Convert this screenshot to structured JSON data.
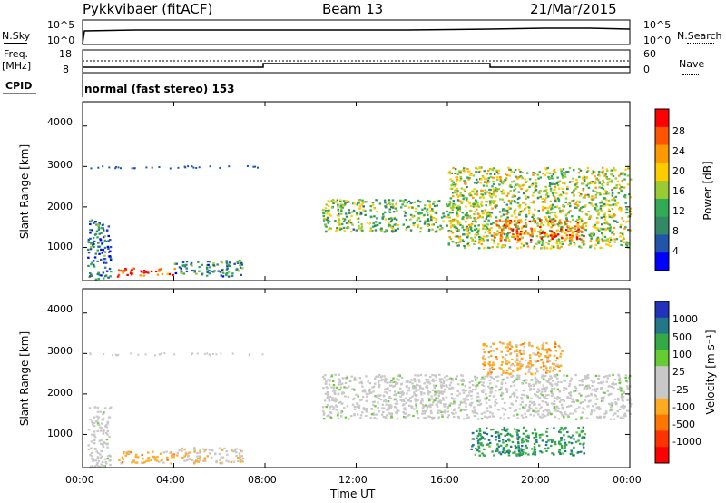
{
  "header": {
    "station": "Pykkvibaer (fitACF)",
    "beam": "Beam 13",
    "date": "21/Mar/2015"
  },
  "noise_panel": {
    "left_label": "N.Sky",
    "right_label": "N.Search",
    "left_ticks": [
      "10^5",
      "10^0"
    ],
    "right_ticks": [
      "10^5",
      "10^0"
    ]
  },
  "freq_panel": {
    "left_label_1": "Freq.",
    "left_label_2": "[MHz]",
    "right_label": "Nave",
    "left_ticks": [
      "18",
      "8"
    ],
    "right_ticks": [
      "60",
      "0"
    ]
  },
  "cpid": {
    "label": "CPID",
    "value": "normal (fast stereo) 153"
  },
  "power_colorbar": {
    "label": "Power [dB]",
    "ticks": [
      "28",
      "24",
      "20",
      "16",
      "12",
      "8",
      "4"
    ],
    "colors": [
      "#ff0000",
      "#ff5500",
      "#ff9900",
      "#ffcc00",
      "#99cc33",
      "#33aa55",
      "#338866",
      "#2255aa",
      "#0000ff"
    ]
  },
  "velocity_colorbar": {
    "label": "Velocity [m s⁻¹]",
    "ticks": [
      "1000",
      "500",
      "100",
      "25",
      "-25",
      "-100",
      "-500",
      "-1000"
    ],
    "colors": [
      "#2233bb",
      "#227788",
      "#33aa44",
      "#66cc33",
      "#c8c8c8",
      "#c8c8c8",
      "#ffaa22",
      "#ff7700",
      "#ff3300",
      "#ff0000"
    ]
  },
  "axes": {
    "y_label": "Slant Range [km]",
    "y_ticks": [
      "4000",
      "3000",
      "2000",
      "1000"
    ],
    "x_label": "Time UT",
    "x_ticks": [
      "00:00",
      "04:00",
      "08:00",
      "12:00",
      "16:00",
      "20:00",
      "00:00"
    ]
  },
  "chart_data": [
    {
      "type": "heatmap",
      "title": "",
      "xlabel": "Time UT",
      "ylabel": "Slant Range [km]",
      "xlim": [
        "00:00",
        "24:00"
      ],
      "ylim": [
        180,
        4600
      ],
      "colorbar": "Power [dB]",
      "regions": [
        {
          "t_start": 0.2,
          "t_end": 1.2,
          "r_start": 200,
          "r_end": 1700,
          "value": 8
        },
        {
          "t_start": 1.5,
          "t_end": 4.0,
          "r_start": 300,
          "r_end": 500,
          "value": 28
        },
        {
          "t_start": 4.0,
          "t_end": 7.0,
          "r_start": 300,
          "r_end": 700,
          "value": 10
        },
        {
          "t_start": 10.5,
          "t_end": 16.5,
          "r_start": 1400,
          "r_end": 2200,
          "value": 14
        },
        {
          "t_start": 16.0,
          "t_end": 24.0,
          "r_start": 1000,
          "r_end": 3000,
          "value": 16
        },
        {
          "t_start": 18.0,
          "t_end": 22.0,
          "r_start": 1200,
          "r_end": 1700,
          "value": 26
        }
      ]
    },
    {
      "type": "heatmap",
      "title": "",
      "xlabel": "Time UT",
      "ylabel": "Slant Range [km]",
      "xlim": [
        "00:00",
        "24:00"
      ],
      "ylim": [
        180,
        4600
      ],
      "colorbar": "Velocity [m s⁻¹]",
      "regions": [
        {
          "t_start": 0.2,
          "t_end": 1.2,
          "r_start": 200,
          "r_end": 1700,
          "value": 0
        },
        {
          "t_start": 1.5,
          "t_end": 4.0,
          "r_start": 300,
          "r_end": 600,
          "value": -150
        },
        {
          "t_start": 4.0,
          "t_end": 7.0,
          "r_start": 300,
          "r_end": 700,
          "value": -50
        },
        {
          "t_start": 10.5,
          "t_end": 24.0,
          "r_start": 1400,
          "r_end": 2500,
          "value": 0
        },
        {
          "t_start": 17.0,
          "t_end": 22.0,
          "r_start": 500,
          "r_end": 1200,
          "value": 200
        },
        {
          "t_start": 17.5,
          "t_end": 21.0,
          "r_start": 2500,
          "r_end": 3300,
          "value": -150
        }
      ]
    }
  ]
}
